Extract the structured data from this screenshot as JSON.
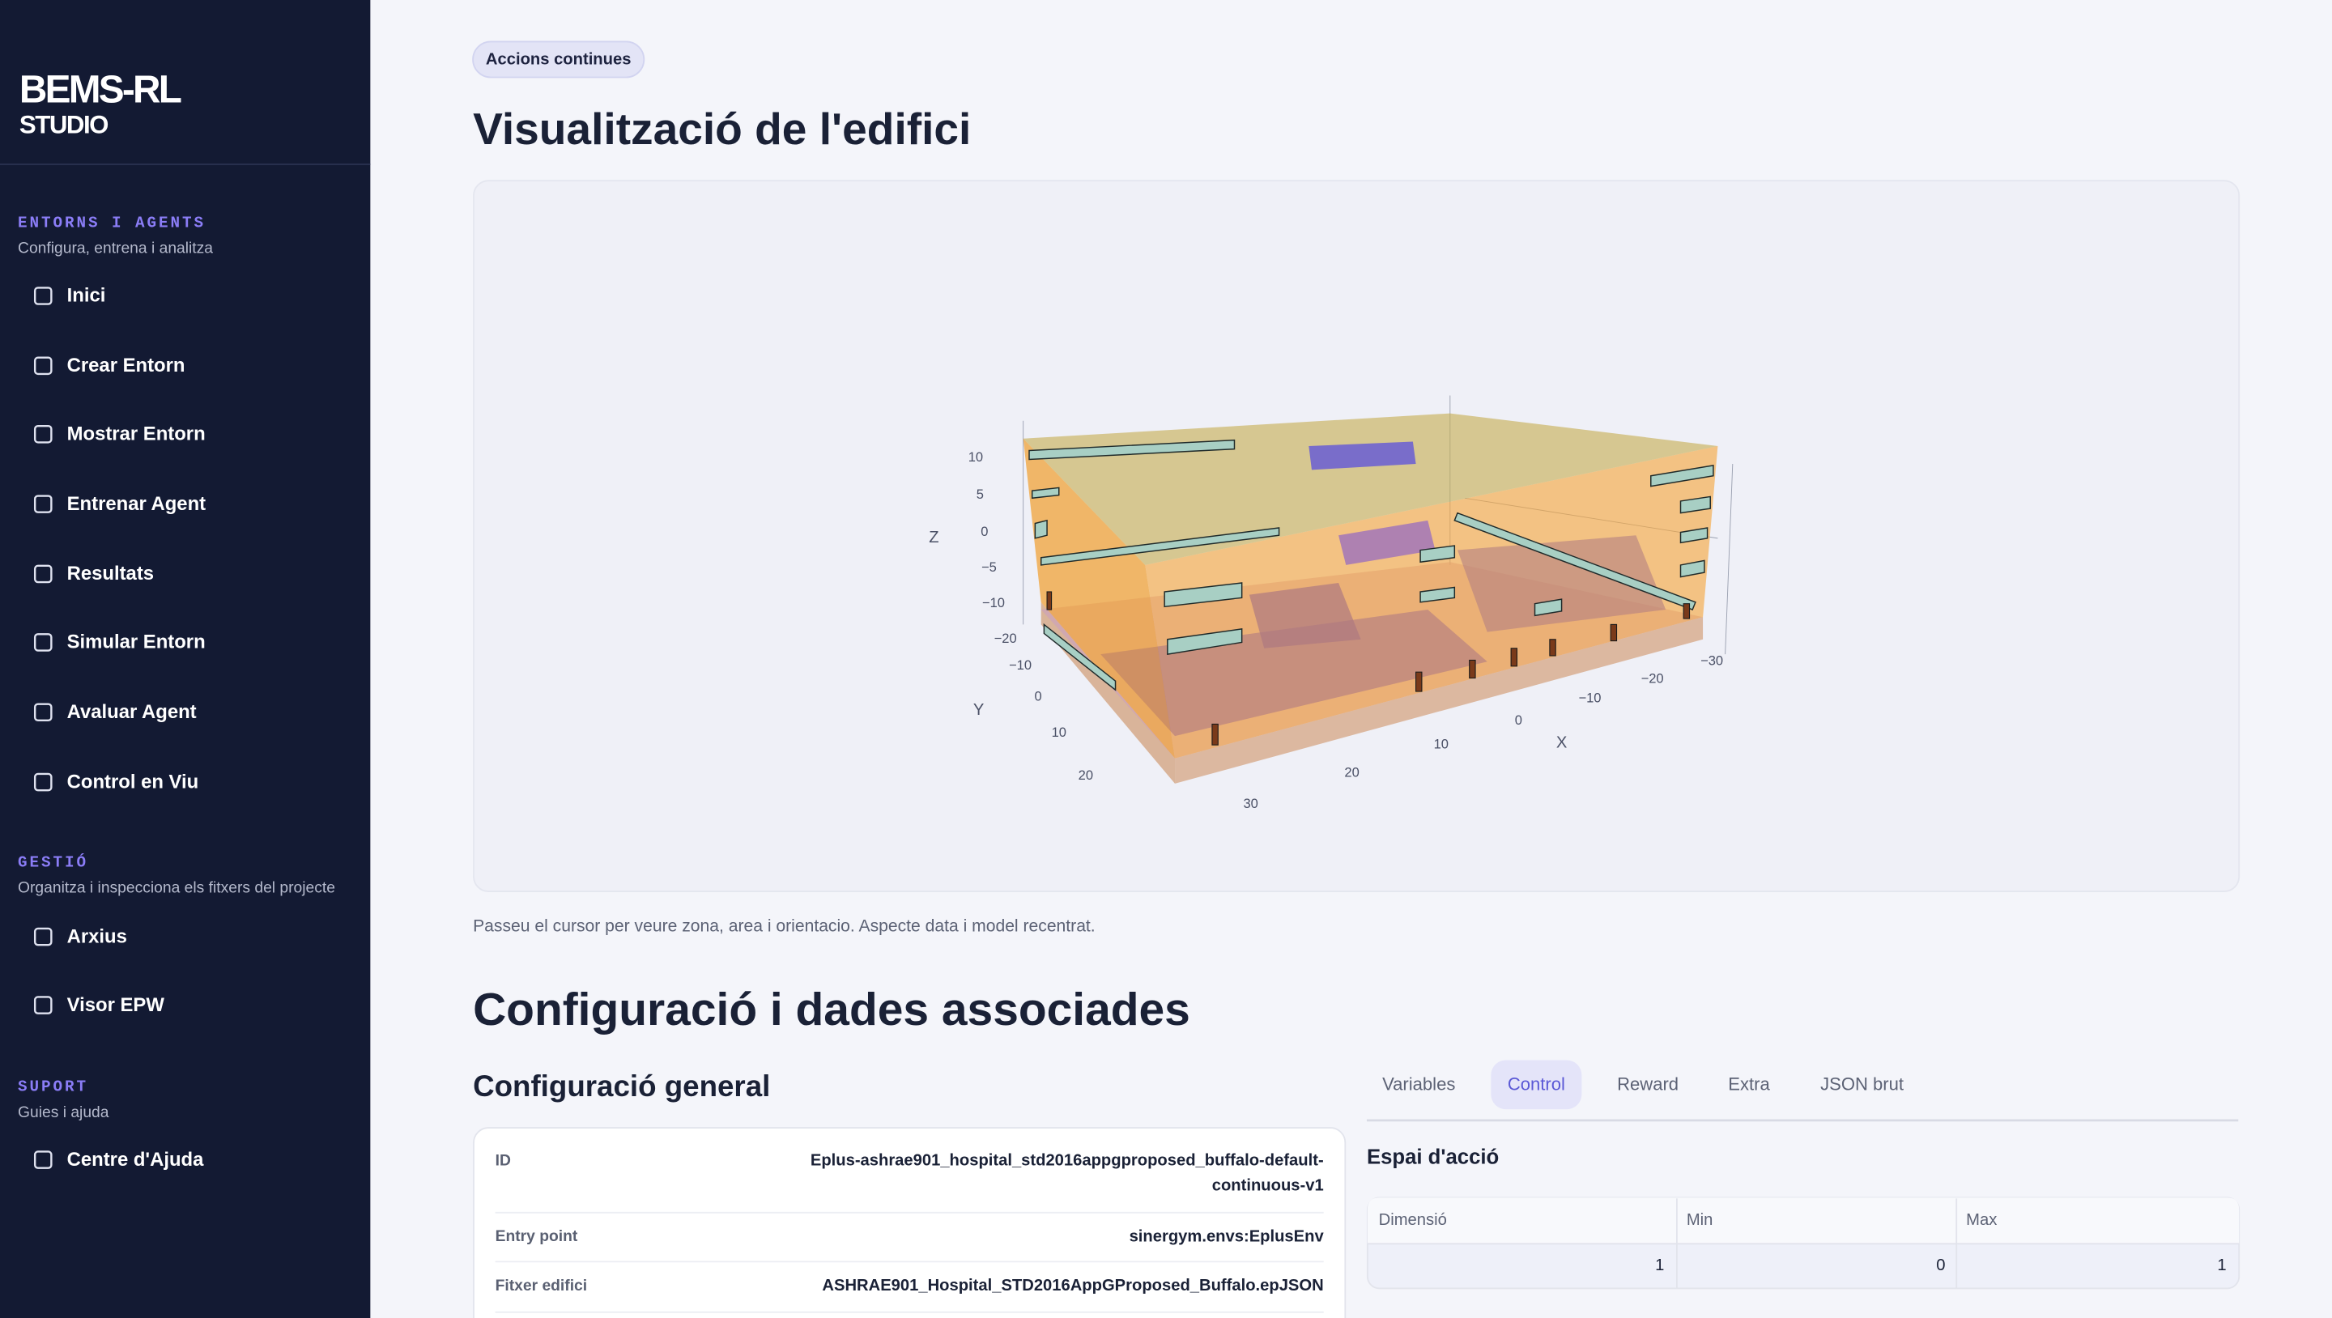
{
  "sidebar": {
    "logo": {
      "line1": "BEMS-RL",
      "line2": "STUDIO"
    },
    "sections": [
      {
        "title": "ENTORNS I AGENTS",
        "subtitle": "Configura, entrena i analitza",
        "items": [
          "Inici",
          "Crear Entorn",
          "Mostrar Entorn",
          "Entrenar Agent",
          "Resultats",
          "Simular Entorn",
          "Avaluar Agent",
          "Control en Viu"
        ]
      },
      {
        "title": "GESTIÓ",
        "subtitle": "Organitza i inspecciona els fitxers del projecte",
        "items": [
          "Arxius",
          "Visor EPW"
        ]
      },
      {
        "title": "SUPORT",
        "subtitle": "Guies i ajuda",
        "items": [
          "Centre d'Ajuda"
        ]
      }
    ]
  },
  "main": {
    "badge": "Accions continues",
    "title": "Visualització de l'edifici",
    "viewer": {
      "axes": {
        "z": {
          "label": "Z",
          "ticks": [
            "10",
            "5",
            "0",
            "−5",
            "−10"
          ]
        },
        "y": {
          "label": "Y",
          "ticks": [
            "−20",
            "−10",
            "0",
            "10",
            "20"
          ]
        },
        "x": {
          "label": "X",
          "ticks": [
            "30",
            "20",
            "10",
            "0",
            "−10",
            "−20",
            "−30"
          ]
        }
      }
    },
    "caption": "Passeu el cursor per veure zona, area i orientacio. Aspecte data i model recentrat.",
    "section_title": "Configuració i dades associades",
    "general": {
      "title": "Configuració general",
      "rows": [
        {
          "label": "ID",
          "value": "Eplus-ashrae901_hospital_std2016appgproposed_buffalo-default-continuous-v1"
        },
        {
          "label": "Entry point",
          "value": "sinergym.envs:EplusEnv"
        },
        {
          "label": "Fitxer edifici",
          "value": "ASHRAE901_Hospital_STD2016AppGProposed_Buffalo.epJSON"
        }
      ]
    },
    "tabs": {
      "items": [
        "Variables",
        "Control",
        "Reward",
        "Extra",
        "JSON brut"
      ],
      "active": 1
    },
    "action_space": {
      "title": "Espai d'acció",
      "columns": [
        "Dimensió",
        "Min",
        "Max"
      ],
      "rows": [
        [
          1,
          0,
          1
        ]
      ]
    }
  }
}
